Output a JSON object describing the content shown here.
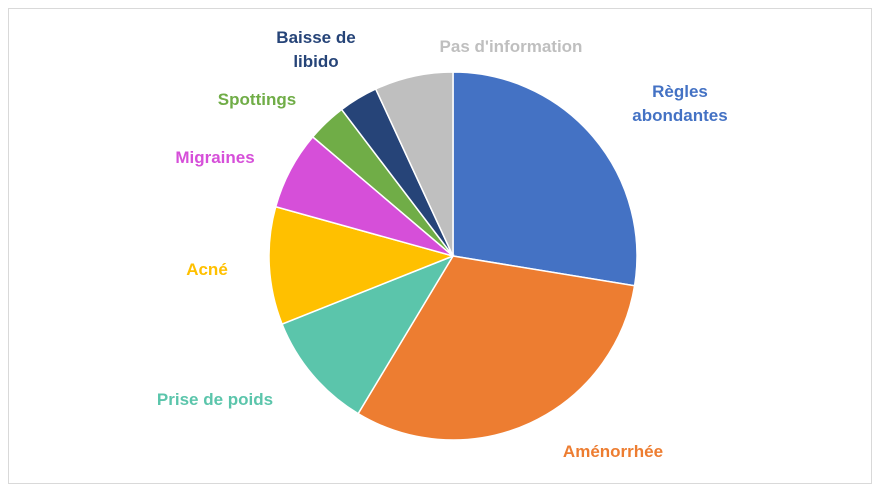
{
  "chart_data": {
    "type": "pie",
    "categories": [
      "Règles abondantes",
      "Aménorrhée",
      "Prise de poids",
      "Acné",
      "Migraines",
      "Spottings",
      "Baisse de libido",
      "Pas d'information"
    ],
    "values": [
      8,
      9,
      3,
      3,
      2,
      1,
      1,
      2
    ],
    "colors": [
      "#4472c4",
      "#ed7d31",
      "#5bc5ab",
      "#ffc000",
      "#d64fd9",
      "#70ad47",
      "#264478",
      "#bfbfbf"
    ]
  }
}
